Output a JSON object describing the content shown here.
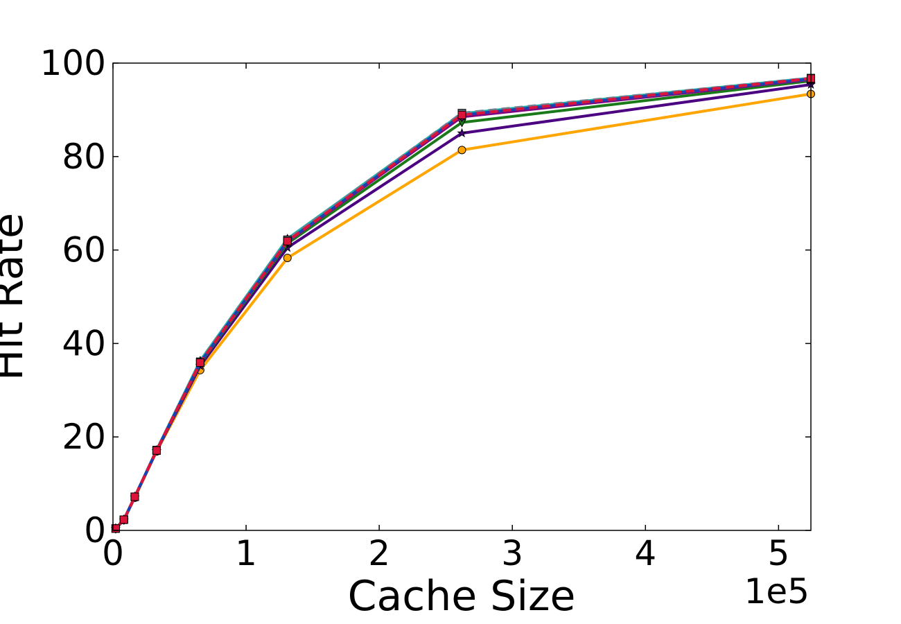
{
  "chart_data": {
    "type": "line",
    "title": "",
    "xlabel": "Cache Size",
    "ylabel": "Hit Rate",
    "x_offset_label": "1e5",
    "xlim": [
      0,
      5.24288
    ],
    "ylim": [
      0,
      100
    ],
    "xticks": [
      0,
      1,
      2,
      3,
      4,
      5
    ],
    "yticks": [
      0,
      20,
      40,
      60,
      80,
      100
    ],
    "xtick_labels": [
      "0",
      "1",
      "2",
      "3",
      "4",
      "5"
    ],
    "ytick_labels": [
      "0",
      "20",
      "40",
      "60",
      "80",
      "100"
    ],
    "grid": false,
    "legend": "none",
    "x": [
      0.02048,
      0.08192,
      0.16384,
      0.32768,
      0.65536,
      1.31072,
      2.62144,
      5.24288
    ],
    "series": [
      {
        "color": "#ffa500",
        "marker": "circle",
        "dash": "solid",
        "values": [
          0.4,
          2.2,
          7.0,
          16.9,
          34.3,
          58.3,
          81.4,
          93.4
        ]
      },
      {
        "color": "#4b0082",
        "marker": "star",
        "dash": "solid",
        "values": [
          0.4,
          2.2,
          7.1,
          17.0,
          35.2,
          60.5,
          85.0,
          95.4
        ]
      },
      {
        "color": "#1a7a1a",
        "marker": "triangle-down",
        "dash": "solid",
        "values": [
          0.4,
          2.3,
          7.2,
          17.1,
          35.7,
          61.4,
          87.3,
          96.2
        ]
      },
      {
        "color": "#800080",
        "marker": "diamond",
        "dash": "solid",
        "values": [
          0.4,
          2.3,
          7.2,
          17.1,
          35.9,
          61.8,
          88.5,
          96.5
        ]
      },
      {
        "color": "#20b2aa",
        "marker": "triangle-up",
        "dash": "solid",
        "values": [
          0.4,
          2.3,
          7.2,
          17.2,
          36.3,
          62.4,
          89.2,
          96.8
        ]
      },
      {
        "color": "#708090",
        "marker": "square",
        "dash": "dashed",
        "values": [
          0.4,
          2.3,
          7.2,
          17.2,
          36.1,
          62.2,
          89.3,
          96.8
        ]
      },
      {
        "color": "#1f3fb0",
        "marker": "square",
        "dash": "solid",
        "values": [
          0.4,
          2.3,
          7.2,
          17.1,
          35.9,
          61.9,
          88.9,
          96.6
        ]
      },
      {
        "color": "#dc143c",
        "marker": "square",
        "dash": "dashed",
        "values": [
          0.4,
          2.3,
          7.2,
          17.1,
          35.9,
          61.9,
          88.9,
          96.7
        ]
      }
    ]
  }
}
